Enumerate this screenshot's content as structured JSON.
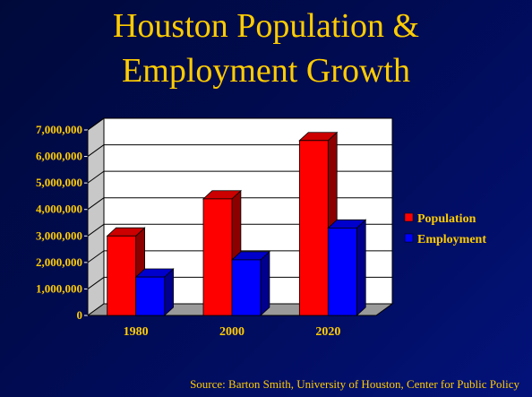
{
  "title_line1": "Houston Population &",
  "title_line2": "Employment Growth",
  "source": "Source: Barton Smith, University of Houston, Center for Public Policy",
  "colors": {
    "title": "#ffcc00",
    "population": "#ff0000",
    "employment": "#0000ff",
    "plot_background": "#ffffff"
  },
  "chart_data": {
    "type": "bar",
    "title": "Houston Population & Employment Growth",
    "categories": [
      "1980",
      "2000",
      "2020"
    ],
    "series": [
      {
        "name": "Population",
        "values": [
          3000000,
          4400000,
          6600000
        ]
      },
      {
        "name": "Employment",
        "values": [
          1450000,
          2100000,
          3300000
        ]
      }
    ],
    "yticks": [
      "0",
      "1,000,000",
      "2,000,000",
      "3,000,000",
      "4,000,000",
      "5,000,000",
      "6,000,000",
      "7,000,000"
    ],
    "ylim": [
      0,
      7000000
    ],
    "grid": true,
    "legend": "right",
    "style": "3d"
  }
}
